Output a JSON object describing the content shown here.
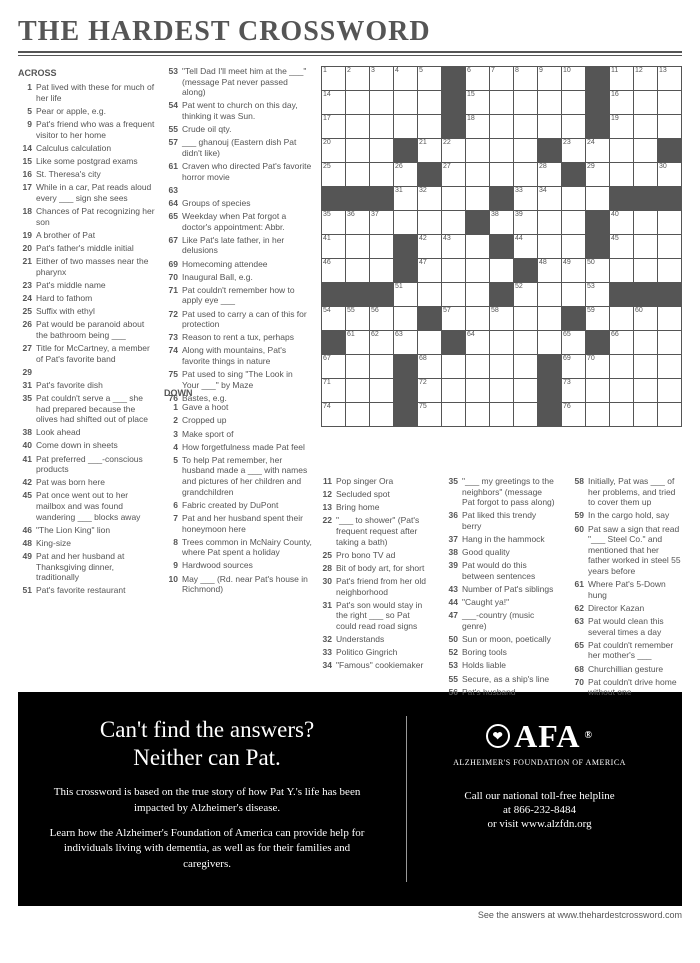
{
  "title": "THE HARDEST CROSSWORD",
  "grid": {
    "rows": 15,
    "cols": 15,
    "cell_size": 24,
    "border_color": "#555555",
    "black_color": "#555555",
    "background_color": "#ffffff",
    "black_cells": [
      [
        0,
        5
      ],
      [
        0,
        11
      ],
      [
        1,
        5
      ],
      [
        1,
        11
      ],
      [
        2,
        5
      ],
      [
        2,
        11
      ],
      [
        3,
        3
      ],
      [
        3,
        9
      ],
      [
        3,
        14
      ],
      [
        4,
        4
      ],
      [
        4,
        10
      ],
      [
        5,
        0
      ],
      [
        5,
        1
      ],
      [
        5,
        2
      ],
      [
        5,
        7
      ],
      [
        5,
        12
      ],
      [
        5,
        13
      ],
      [
        5,
        14
      ],
      [
        6,
        6
      ],
      [
        6,
        11
      ],
      [
        7,
        3
      ],
      [
        7,
        7
      ],
      [
        7,
        11
      ],
      [
        8,
        3
      ],
      [
        8,
        8
      ],
      [
        9,
        0
      ],
      [
        9,
        1
      ],
      [
        9,
        2
      ],
      [
        9,
        7
      ],
      [
        9,
        12
      ],
      [
        9,
        13
      ],
      [
        9,
        14
      ],
      [
        10,
        4
      ],
      [
        10,
        10
      ],
      [
        11,
        0
      ],
      [
        11,
        5
      ],
      [
        11,
        11
      ],
      [
        12,
        3
      ],
      [
        12,
        9
      ],
      [
        13,
        3
      ],
      [
        13,
        9
      ],
      [
        14,
        3
      ],
      [
        14,
        9
      ]
    ],
    "numbers": {
      "0,0": 1,
      "0,1": 2,
      "0,2": 3,
      "0,3": 4,
      "0,4": 5,
      "0,6": 6,
      "0,7": 7,
      "0,8": 8,
      "0,9": 9,
      "0,10": 10,
      "0,12": 11,
      "0,13": 12,
      "0,14": 13,
      "1,0": 14,
      "1,6": 15,
      "1,12": 16,
      "2,0": 17,
      "2,6": 18,
      "2,12": 19,
      "3,0": 20,
      "3,4": 21,
      "3,5": 22,
      "3,10": 23,
      "3,11": 24,
      "4,0": 25,
      "4,3": 26,
      "4,5": 27,
      "4,9": 28,
      "4,11": 29,
      "4,14": 30,
      "5,3": 31,
      "5,4": 32,
      "5,8": 33,
      "5,9": 34,
      "6,0": 35,
      "6,1": 36,
      "6,2": 37,
      "6,7": 38,
      "6,8": 39,
      "6,12": 40,
      "6,13": "",
      "6,14": "",
      "7,0": 41,
      "7,4": 42,
      "7,5": 43,
      "7,8": 44,
      "7,12": 45,
      "8,0": 46,
      "8,4": 47,
      "8,9": 48,
      "8,10": 49,
      "8,11": 50,
      "9,3": 51,
      "9,8": 52,
      "9,11": 53,
      "10,0": 54,
      "10,1": 55,
      "10,2": 56,
      "10,5": 57,
      "10,7": 58,
      "10,11": 59,
      "10,12": "",
      "10,13": 60,
      "10,14": "",
      "11,1": 61,
      "11,2": 62,
      "11,3": 63,
      "11,6": 64,
      "11,10": 65,
      "11,12": 66,
      "12,0": 67,
      "12,4": 68,
      "12,10": 69,
      "12,11": 70,
      "13,0": 71,
      "13,4": 72,
      "13,10": 73,
      "14,0": 74,
      "14,4": 75,
      "14,10": 76
    }
  },
  "across_header": "ACROSS",
  "down_header": "DOWN",
  "across": [
    {
      "n": 1,
      "t": "Pat lived with these for much of her life"
    },
    {
      "n": 5,
      "t": "Pear or apple, e.g."
    },
    {
      "n": 9,
      "t": "Pat's friend who was a frequent visitor to her home"
    },
    {
      "n": 14,
      "t": "Calculus calculation"
    },
    {
      "n": 15,
      "t": "Like some postgrad exams"
    },
    {
      "n": 16,
      "t": "St. Theresa's city"
    },
    {
      "n": 17,
      "t": "While in a car, Pat reads aloud every ___ sign she sees"
    },
    {
      "n": 18,
      "t": "Chances of Pat recognizing her son"
    },
    {
      "n": 19,
      "t": "A brother of Pat"
    },
    {
      "n": 20,
      "t": "Pat's father's middle initial"
    },
    {
      "n": 21,
      "t": "Either of two masses near the pharynx"
    },
    {
      "n": 23,
      "t": "Pat's middle name"
    },
    {
      "n": 24,
      "t": "Hard to fathom"
    },
    {
      "n": 25,
      "t": "Suffix with ethyl"
    },
    {
      "n": 26,
      "t": "Pat would be paranoid about the bathroom being ___"
    },
    {
      "n": 27,
      "t": "Title for McCartney, a member of Pat's favorite band"
    },
    {
      "n": 29,
      "t": ""
    },
    {
      "n": 31,
      "t": "Pat's favorite dish"
    },
    {
      "n": 35,
      "t": "Pat couldn't serve a ___ she had prepared because the olives had shifted out of place"
    },
    {
      "n": 38,
      "t": "Look ahead"
    },
    {
      "n": 40,
      "t": "Come down in sheets"
    },
    {
      "n": 41,
      "t": "Pat preferred ___-conscious products"
    },
    {
      "n": 42,
      "t": "Pat was born here"
    },
    {
      "n": 45,
      "t": "Pat once went out to her mailbox and was found wandering ___ blocks away"
    },
    {
      "n": 46,
      "t": "\"The Lion King\" lion"
    },
    {
      "n": 48,
      "t": "King-size"
    },
    {
      "n": 49,
      "t": "Pat and her husband at Thanksgiving dinner, traditionally"
    },
    {
      "n": 51,
      "t": "Pat's favorite restaurant"
    }
  ],
  "across_col2": [
    {
      "n": 53,
      "t": "\"Tell Dad I'll meet him at the ___\" (message Pat never passed along)"
    },
    {
      "n": 54,
      "t": "Pat went to church on this day, thinking it was Sun."
    },
    {
      "n": 55,
      "t": "Crude oil qty."
    },
    {
      "n": 57,
      "t": "___ ghanouj (Eastern dish Pat didn't like)"
    },
    {
      "n": 61,
      "t": "Craven who directed Pat's favorite horror movie"
    },
    {
      "n": 63,
      "t": ""
    },
    {
      "n": 64,
      "t": "Groups of species"
    },
    {
      "n": 65,
      "t": "Weekday when Pat forgot a doctor's appointment: Abbr."
    },
    {
      "n": 67,
      "t": "Like Pat's late father, in her delusions"
    },
    {
      "n": 69,
      "t": "Homecoming attendee"
    },
    {
      "n": 70,
      "t": "Inaugural Ball, e.g."
    },
    {
      "n": 71,
      "t": "Pat couldn't remember how to apply eye ___"
    },
    {
      "n": 72,
      "t": "Pat used to carry a can of this for protection"
    },
    {
      "n": 73,
      "t": "Reason to rent a tux, perhaps"
    },
    {
      "n": 74,
      "t": "Along with mountains, Pat's favorite things in nature"
    },
    {
      "n": 75,
      "t": "Pat used to sing \"The Look in Your ___\" by Maze"
    },
    {
      "n": 76,
      "t": "Bastes, e.g."
    }
  ],
  "down_col1": [
    {
      "n": 1,
      "t": "Gave a hoot"
    },
    {
      "n": 2,
      "t": "Cropped up"
    },
    {
      "n": 3,
      "t": "Make sport of"
    },
    {
      "n": 4,
      "t": "How forgetfulness made Pat feel"
    },
    {
      "n": 5,
      "t": "To help Pat remember, her husband made a ___ with names and pictures of her children and grandchildren"
    },
    {
      "n": 6,
      "t": "Fabric created by DuPont"
    },
    {
      "n": 7,
      "t": "Pat and her husband spent their honeymoon here"
    },
    {
      "n": 8,
      "t": "Trees common in McNairy County, where Pat spent a holiday"
    },
    {
      "n": 9,
      "t": "Hardwood sources"
    },
    {
      "n": 10,
      "t": "May ___ (Rd. near Pat's house in Richmond)"
    }
  ],
  "down_bottom": [
    [
      {
        "n": 11,
        "t": "Pop singer Ora"
      },
      {
        "n": 12,
        "t": "Secluded spot"
      },
      {
        "n": 13,
        "t": "Bring home"
      },
      {
        "n": 22,
        "t": "\"___ to shower\" (Pat's frequent request after taking a bath)"
      },
      {
        "n": 25,
        "t": "Pro bono TV ad"
      },
      {
        "n": 28,
        "t": "Bit of body art, for short"
      },
      {
        "n": 30,
        "t": "Pat's friend from her old neighborhood"
      },
      {
        "n": 31,
        "t": "Pat's son would stay in the right ___ so Pat could read road signs"
      },
      {
        "n": 32,
        "t": "Understands"
      },
      {
        "n": 33,
        "t": "Politico Gingrich"
      },
      {
        "n": 34,
        "t": "\"Famous\" cookiemaker"
      }
    ],
    [
      {
        "n": 35,
        "t": "\"___ my greetings to the neighbors\" (message Pat forgot to pass along)"
      },
      {
        "n": 36,
        "t": "Pat liked this trendy berry"
      },
      {
        "n": 37,
        "t": "Hang in the hammock"
      },
      {
        "n": 38,
        "t": "Good quality"
      },
      {
        "n": 39,
        "t": "Pat would do this between sentences"
      },
      {
        "n": 43,
        "t": "Number of Pat's siblings"
      },
      {
        "n": 44,
        "t": "\"Caught ya!\""
      },
      {
        "n": 47,
        "t": "___-country (music genre)"
      },
      {
        "n": 50,
        "t": "Sun or moon, poetically"
      },
      {
        "n": 52,
        "t": "Boring tools"
      },
      {
        "n": 53,
        "t": "Holds liable"
      },
      {
        "n": 55,
        "t": "Secure, as a ship's line"
      },
      {
        "n": 56,
        "t": "Pat's husband"
      }
    ],
    [
      {
        "n": 58,
        "t": "Initially, Pat was ___ of her problems, and tried to cover them up"
      },
      {
        "n": 59,
        "t": "In the cargo hold, say"
      },
      {
        "n": 60,
        "t": "Pat saw a sign that read \"___ Steel Co.\" and mentioned that her father worked in steel 55 years before"
      },
      {
        "n": 61,
        "t": "Where Pat's 5-Down hung"
      },
      {
        "n": 62,
        "t": "Director Kazan"
      },
      {
        "n": 63,
        "t": "Pat would clean this several times a day"
      },
      {
        "n": 65,
        "t": "Pat couldn't remember her mother's ___"
      },
      {
        "n": 68,
        "t": "Churchillian gesture"
      },
      {
        "n": 70,
        "t": "Pat couldn't drive home without one"
      }
    ]
  ],
  "promo": {
    "headline1": "Can't find the answers?",
    "headline2": "Neither can Pat.",
    "p1": "This crossword is based on the true story of how Pat Y.'s life has been impacted by Alzheimer's disease.",
    "p2": "Learn how the Alzheimer's Foundation of America can provide help for individuals living with dementia, as well as for their families and caregivers.",
    "logo_text": "AFA",
    "logo_tag": "ALZHEIMER'S FOUNDATION OF AMERICA",
    "helpline1": "Call our national toll-free helpline",
    "helpline2": "at 866-232-8484",
    "helpline3": "or visit www.alzfdn.org",
    "background_color": "#000000",
    "text_color": "#ffffff"
  },
  "footer": "See the answers at www.thehardestcrossword.com"
}
